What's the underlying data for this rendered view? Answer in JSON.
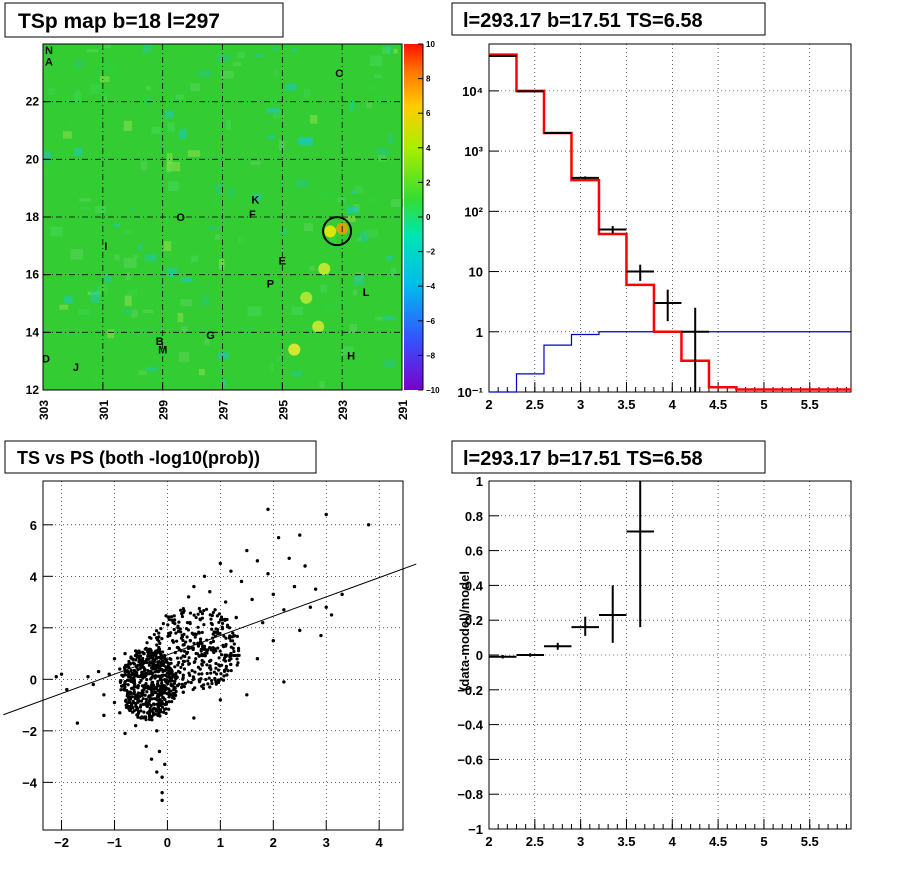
{
  "panels": {
    "map_title": "TSp map b=18 l=297",
    "spec_title": "l=293.17 b=17.51 TS=6.58",
    "scatter_title": "TS vs PS (both -log10(prob))",
    "resid_title": "l=293.17 b=17.51 TS=6.58"
  },
  "colors": {
    "data": "#000000",
    "model_red": "#ff0000",
    "model_blue": "#0000cc",
    "map_background": "#33cc33"
  },
  "chart_data": [
    {
      "type": "heatmap",
      "title": "TSp map b=18 l=297",
      "xlim": [
        303,
        291
      ],
      "ylim": [
        12,
        24
      ],
      "x_ticks": [
        "303",
        "301",
        "299",
        "297",
        "295",
        "293",
        "291"
      ],
      "y_ticks": [
        "12",
        "14",
        "16",
        "18",
        "20",
        "22"
      ],
      "colorbar": {
        "min": -10,
        "max": 10,
        "ticks": [
          "10",
          "8",
          "6",
          "4",
          "2",
          "0",
          "−2",
          "−4",
          "−6",
          "−8",
          "−10"
        ]
      },
      "labels": [
        {
          "text": "N",
          "l": 302.8,
          "b": 23.8
        },
        {
          "text": "A",
          "l": 302.8,
          "b": 23.4
        },
        {
          "text": "C",
          "l": 293.1,
          "b": 23.0
        },
        {
          "text": "K",
          "l": 295.9,
          "b": 18.6
        },
        {
          "text": "O",
          "l": 298.4,
          "b": 18.0
        },
        {
          "text": "F",
          "l": 296.0,
          "b": 18.1
        },
        {
          "text": "I",
          "l": 300.9,
          "b": 17.0
        },
        {
          "text": "E",
          "l": 295.0,
          "b": 16.5
        },
        {
          "text": "P",
          "l": 295.4,
          "b": 15.7
        },
        {
          "text": "L",
          "l": 292.2,
          "b": 15.4
        },
        {
          "text": "G",
          "l": 297.4,
          "b": 13.9
        },
        {
          "text": "B",
          "l": 299.1,
          "b": 13.7
        },
        {
          "text": "M",
          "l": 299.0,
          "b": 13.4
        },
        {
          "text": "H",
          "l": 292.7,
          "b": 13.2
        },
        {
          "text": "D",
          "l": 302.9,
          "b": 13.1
        },
        {
          "text": "J",
          "l": 301.9,
          "b": 12.8
        }
      ],
      "marker": {
        "l": 293.17,
        "b": 17.51
      }
    },
    {
      "type": "line",
      "title": "l=293.17 b=17.51 TS=6.58",
      "log_y": true,
      "xlim": [
        2,
        5.95
      ],
      "ylim": [
        0.1,
        60000
      ],
      "x_ticks": [
        "2",
        "2.5",
        "3",
        "3.5",
        "4",
        "4.5",
        "5",
        "5.5"
      ],
      "y_ticks": [
        "10⁻¹",
        "1",
        "10",
        "10²",
        "10³",
        "10⁴"
      ],
      "bin_edges": [
        2.0,
        2.3,
        2.6,
        2.9,
        3.2,
        3.5,
        3.8,
        4.1,
        4.4,
        4.7,
        5.0,
        5.95
      ],
      "series": [
        {
          "values": [
            40000,
            10000,
            2000,
            330,
            42,
            6,
            1,
            0.33,
            0.12,
            0.11,
            0.11
          ]
        },
        {
          "values": [
            0.1,
            0.2,
            0.6,
            0.9,
            1.0,
            1.0,
            1.0,
            1.0,
            1.0,
            1.0,
            1.0
          ]
        }
      ],
      "data_points": [
        {
          "x": 2.15,
          "y": 38000,
          "xerr": 0.15,
          "ylo": 37000,
          "yhi": 39000
        },
        {
          "x": 2.45,
          "y": 9800,
          "xerr": 0.15,
          "ylo": 9600,
          "yhi": 10000
        },
        {
          "x": 2.75,
          "y": 2000,
          "xerr": 0.15,
          "ylo": 1950,
          "yhi": 2050
        },
        {
          "x": 3.05,
          "y": 360,
          "xerr": 0.15,
          "ylo": 340,
          "yhi": 380
        },
        {
          "x": 3.35,
          "y": 50,
          "xerr": 0.15,
          "ylo": 43,
          "yhi": 57
        },
        {
          "x": 3.65,
          "y": 10,
          "xerr": 0.15,
          "ylo": 7,
          "yhi": 13
        },
        {
          "x": 3.95,
          "y": 3,
          "xerr": 0.15,
          "ylo": 1.5,
          "yhi": 5
        },
        {
          "x": 4.25,
          "y": 1,
          "xerr": 0.15,
          "ylo": 0.1,
          "yhi": 2.5
        }
      ]
    },
    {
      "type": "scatter",
      "title": "TS vs PS (both -log10(prob))",
      "xlim": [
        -2.35,
        4.45
      ],
      "ylim": [
        -5.85,
        7.7
      ],
      "x_ticks": [
        "−2",
        "−1",
        "0",
        "1",
        "2",
        "3",
        "4"
      ],
      "y_ticks": [
        "−4",
        "−2",
        "0",
        "2",
        "4",
        "6"
      ],
      "fit_line": {
        "slope": 0.75,
        "intercept": 0.95
      },
      "points": [
        [
          -2.1,
          0.1
        ],
        [
          -1.9,
          -0.4
        ],
        [
          -2.0,
          0.2
        ],
        [
          -1.7,
          -1.7
        ],
        [
          -1.5,
          0.1
        ],
        [
          -1.4,
          -0.2
        ],
        [
          -1.3,
          0.3
        ],
        [
          -1.2,
          -0.6
        ],
        [
          -1.1,
          0.2
        ],
        [
          -1.0,
          -0.9
        ],
        [
          -1.0,
          0.8
        ],
        [
          -0.9,
          -1.3
        ],
        [
          -0.9,
          0.4
        ],
        [
          -0.8,
          -2.1
        ],
        [
          -0.8,
          1.0
        ],
        [
          -0.7,
          -0.5
        ],
        [
          -0.7,
          0.6
        ],
        [
          -0.6,
          -1.8
        ],
        [
          -0.6,
          1.1
        ],
        [
          -0.5,
          -1.0
        ],
        [
          -0.5,
          0.5
        ],
        [
          -0.4,
          -2.6
        ],
        [
          -0.4,
          1.2
        ],
        [
          -0.3,
          -3.1
        ],
        [
          -0.3,
          -0.4
        ],
        [
          -0.2,
          -3.6
        ],
        [
          -0.2,
          -2.0
        ],
        [
          -0.1,
          -4.4
        ],
        [
          -0.1,
          -4.7
        ],
        [
          -0.1,
          -3.8
        ],
        [
          -0.15,
          -2.8
        ],
        [
          -0.05,
          -3.3
        ],
        [
          0.1,
          1.5
        ],
        [
          0.2,
          2.0
        ],
        [
          0.3,
          2.6
        ],
        [
          0.4,
          3.2
        ],
        [
          0.5,
          3.6
        ],
        [
          0.6,
          1.8
        ],
        [
          0.7,
          4.0
        ],
        [
          0.8,
          3.4
        ],
        [
          0.9,
          2.7
        ],
        [
          1.0,
          4.5
        ],
        [
          1.1,
          3.0
        ],
        [
          1.2,
          4.2
        ],
        [
          1.3,
          2.4
        ],
        [
          1.4,
          3.8
        ],
        [
          1.5,
          5.0
        ],
        [
          1.6,
          3.1
        ],
        [
          1.7,
          4.6
        ],
        [
          1.8,
          2.2
        ],
        [
          1.9,
          4.1
        ],
        [
          1.9,
          6.6
        ],
        [
          2.0,
          3.3
        ],
        [
          2.1,
          5.5
        ],
        [
          2.2,
          2.7
        ],
        [
          2.3,
          4.7
        ],
        [
          2.4,
          3.6
        ],
        [
          2.5,
          5.6
        ],
        [
          2.6,
          4.4
        ],
        [
          2.7,
          2.8
        ],
        [
          2.8,
          3.5
        ],
        [
          2.9,
          1.7
        ],
        [
          3.0,
          6.4
        ],
        [
          3.1,
          2.5
        ],
        [
          3.3,
          3.3
        ],
        [
          3.8,
          6.0
        ],
        [
          0.5,
          -1.5
        ],
        [
          1.0,
          -0.8
        ],
        [
          1.5,
          -0.6
        ],
        [
          0.8,
          -0.3
        ],
        [
          2.2,
          -0.1
        ],
        [
          2.0,
          1.5
        ],
        [
          1.2,
          1.0
        ],
        [
          0.6,
          0.9
        ],
        [
          -0.5,
          -1.5
        ],
        [
          -1.2,
          -1.4
        ],
        [
          0.3,
          -0.5
        ],
        [
          1.7,
          0.8
        ],
        [
          2.5,
          1.9
        ],
        [
          3.0,
          2.8
        ]
      ]
    },
    {
      "type": "scatter",
      "title": "l=293.17 b=17.51 TS=6.58",
      "ylabel": "(data-model)/model",
      "xlim": [
        2,
        5.95
      ],
      "ylim": [
        -1,
        1
      ],
      "x_ticks": [
        "2",
        "2.5",
        "3",
        "3.5",
        "4",
        "4.5",
        "5",
        "5.5"
      ],
      "y_ticks": [
        "−1",
        "−0.8",
        "−0.6",
        "−0.4",
        "−0.2",
        "0",
        "0.2",
        "0.4",
        "0.6",
        "0.8",
        "1"
      ],
      "points": [
        {
          "x": 2.15,
          "y": -0.01,
          "xerr": 0.15,
          "ylo": -0.02,
          "yhi": 0.0
        },
        {
          "x": 2.45,
          "y": 0.0,
          "xerr": 0.15,
          "ylo": -0.01,
          "yhi": 0.01
        },
        {
          "x": 2.75,
          "y": 0.05,
          "xerr": 0.15,
          "ylo": 0.03,
          "yhi": 0.07
        },
        {
          "x": 3.05,
          "y": 0.16,
          "xerr": 0.15,
          "ylo": 0.11,
          "yhi": 0.22
        },
        {
          "x": 3.35,
          "y": 0.23,
          "xerr": 0.15,
          "ylo": 0.07,
          "yhi": 0.4
        },
        {
          "x": 3.65,
          "y": 0.71,
          "xerr": 0.15,
          "ylo": 0.16,
          "yhi": 1.0
        }
      ]
    }
  ]
}
